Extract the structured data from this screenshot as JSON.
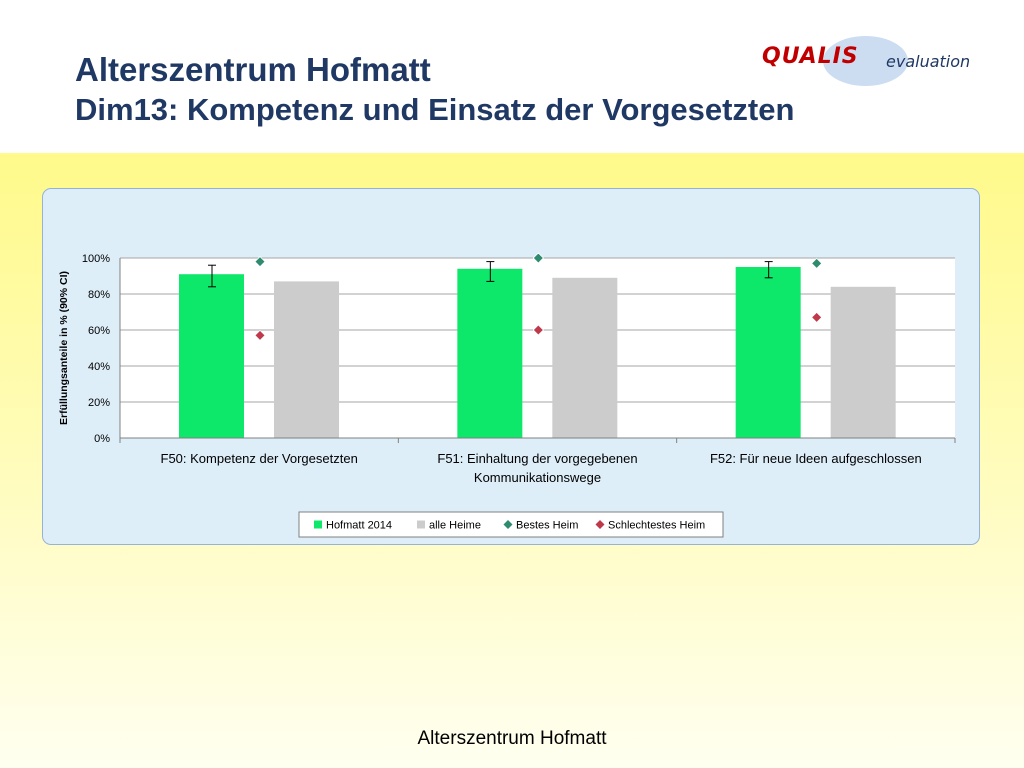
{
  "slide": {
    "title_line1": "Alterszentrum Hofmatt",
    "title_line2": "Dim13: Kompetenz und Einsatz der Vorgesetzten",
    "logo_brand": "QUALIS",
    "logo_suffix": "evaluation",
    "footer": "Alterszentrum Hofmatt"
  },
  "colors": {
    "title": "#1f3864",
    "logo_brand": "#c00000",
    "series_hofmatt": "#0ee86a",
    "series_alle": "#cccccc",
    "series_bestes": "#2e8b6e",
    "series_schlechtestes": "#c0394b"
  },
  "chart_data": {
    "type": "bar",
    "ylabel": "Erfüllungsanteile  in % (90% CI)",
    "ylim": [
      0,
      100
    ],
    "yticks": [
      "0%",
      "20%",
      "40%",
      "60%",
      "80%",
      "100%"
    ],
    "grid": true,
    "legend_position": "bottom",
    "categories": [
      [
        "F50: Kompetenz der Vorgesetzten"
      ],
      [
        "F51: Einhaltung der vorgegebenen",
        "Kommunikationswege"
      ],
      [
        "F52: Für neue Ideen aufgeschlossen"
      ]
    ],
    "series": [
      {
        "name": "Hofmatt 2014",
        "kind": "bar",
        "values": [
          91,
          94,
          95
        ],
        "ci": [
          [
            84,
            96
          ],
          [
            87,
            98
          ],
          [
            89,
            98
          ]
        ]
      },
      {
        "name": "alle Heime",
        "kind": "bar",
        "values": [
          87,
          89,
          84
        ]
      },
      {
        "name": "Bestes Heim",
        "kind": "marker",
        "values": [
          98,
          100,
          97
        ]
      },
      {
        "name": "Schlechtestes Heim",
        "kind": "marker",
        "values": [
          57,
          60,
          67
        ]
      }
    ]
  }
}
